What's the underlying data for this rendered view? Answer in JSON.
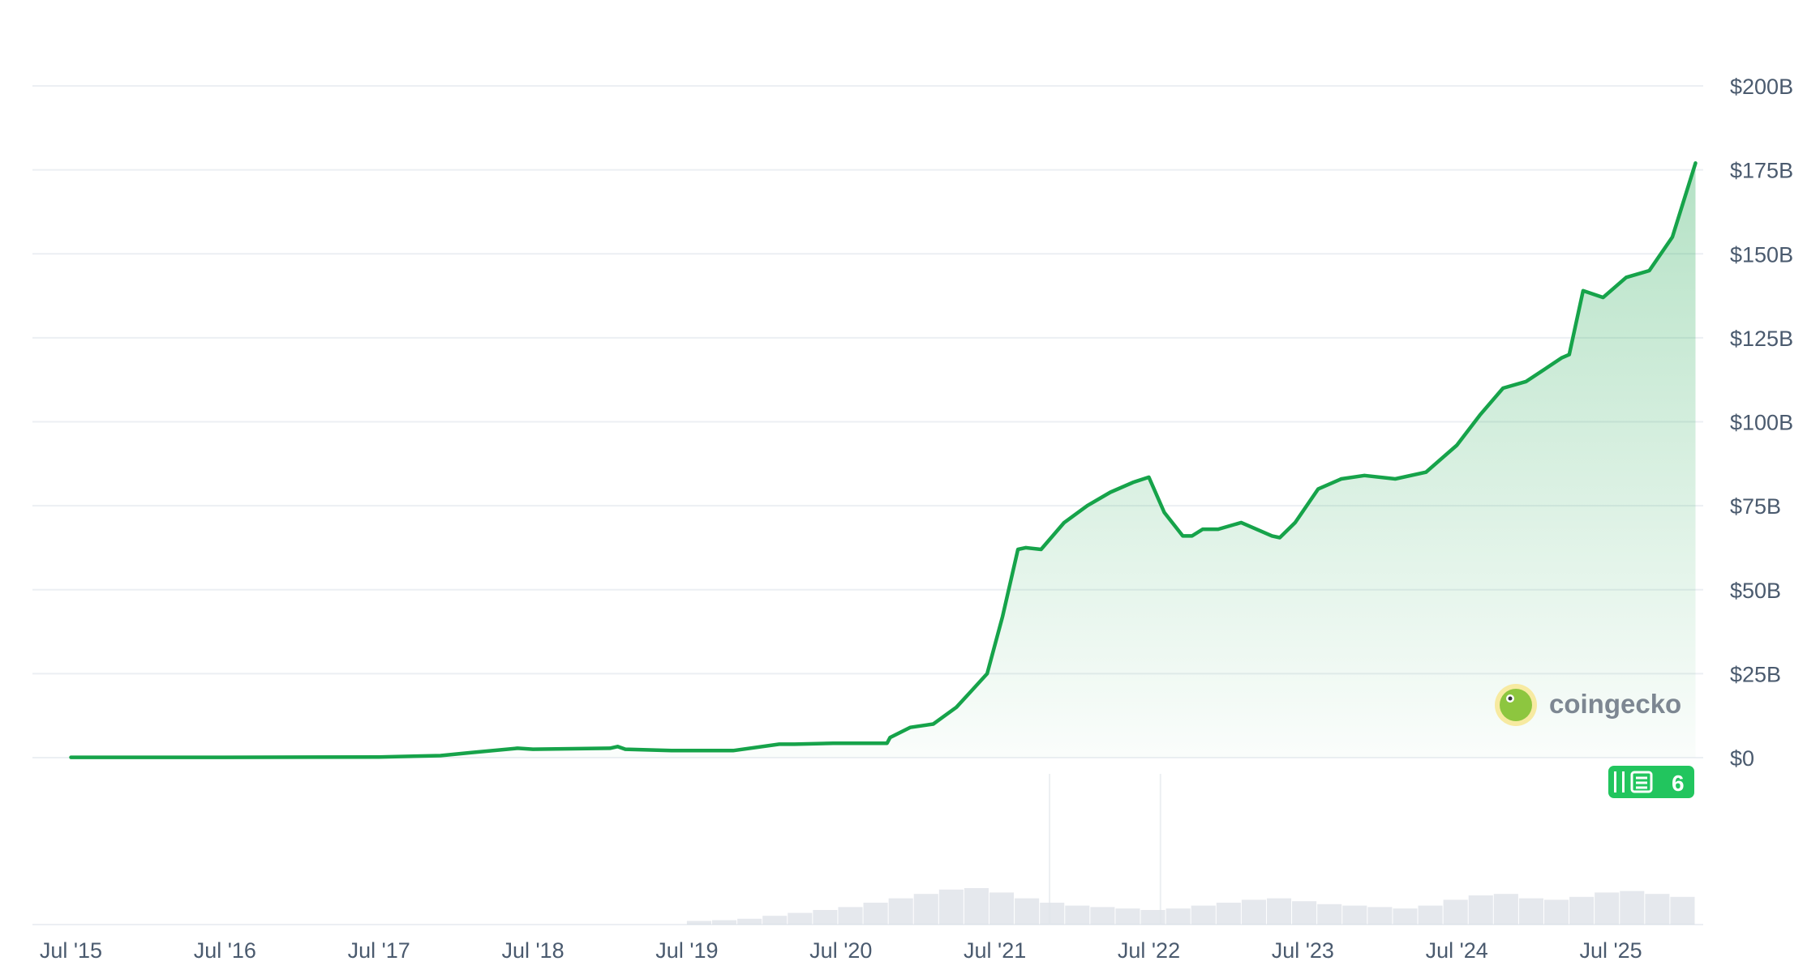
{
  "chart_data": {
    "type": "area",
    "title": "",
    "xlabel": "",
    "ylabel": "",
    "y_axis_position": "right",
    "ylim": [
      0,
      200
    ],
    "y_unit": "B USD",
    "y_ticks": [
      "$0",
      "$25B",
      "$50B",
      "$75B",
      "$100B",
      "$125B",
      "$150B",
      "$175B",
      "$200B"
    ],
    "x_ticks": [
      "Jul '15",
      "Jul '16",
      "Jul '17",
      "Jul '18",
      "Jul '19",
      "Jul '20",
      "Jul '21",
      "Jul '22",
      "Jul '23",
      "Jul '24",
      "Jul '25"
    ],
    "grid": true,
    "line_color": "#16a34a",
    "fill_color": "#16a34a",
    "series": [
      {
        "x": [
          2015.0,
          2016.0,
          2017.0,
          2017.4,
          2017.6,
          2017.9,
          2018.0,
          2018.5,
          2018.55,
          2018.6,
          2018.9,
          2019.0,
          2019.3,
          2019.6,
          2019.7,
          2019.95,
          2020.0,
          2020.3,
          2020.32,
          2020.45,
          2020.6,
          2020.75,
          2020.85,
          2020.95,
          2021.05,
          2021.15,
          2021.2,
          2021.3,
          2021.45,
          2021.6,
          2021.75,
          2021.9,
          2022.0,
          2022.1,
          2022.22,
          2022.28,
          2022.35,
          2022.45,
          2022.6,
          2022.8,
          2022.85,
          2022.95,
          2023.1,
          2023.25,
          2023.4,
          2023.6,
          2023.8,
          2024.0,
          2024.15,
          2024.3,
          2024.45,
          2024.55,
          2024.68,
          2024.73,
          2024.82,
          2024.95,
          2025.1,
          2025.25,
          2025.4,
          2025.55
        ],
        "values": [
          0.1,
          0.1,
          0.2,
          0.6,
          1.5,
          2.8,
          2.5,
          2.8,
          3.3,
          2.5,
          2.1,
          2.1,
          2.1,
          4.0,
          4.0,
          4.3,
          4.3,
          4.3,
          6.0,
          9.0,
          10.0,
          15.0,
          20.0,
          25.0,
          42.0,
          62.0,
          62.5,
          62.0,
          70.0,
          75.0,
          79.0,
          82.0,
          83.5,
          73.0,
          66.0,
          66.0,
          68.0,
          68.0,
          70.0,
          66.0,
          65.5,
          70.0,
          80.0,
          83.0,
          84.0,
          83.0,
          85.0,
          93.0,
          102.0,
          110.0,
          112.0,
          115.0,
          119.0,
          120.0,
          139.0,
          137.0,
          143.0,
          145.0,
          155.0,
          177.0
        ]
      }
    ],
    "volume": {
      "note_x": [
        2021.35,
        2022.07
      ],
      "bars": [
        0.5,
        0.6,
        0.8,
        1.2,
        1.6,
        2.0,
        2.4,
        3.0,
        3.6,
        4.2,
        4.8,
        5.0,
        4.4,
        3.6,
        3.0,
        2.6,
        2.4,
        2.2,
        2.0,
        2.2,
        2.6,
        3.0,
        3.4,
        3.6,
        3.2,
        2.8,
        2.6,
        2.4,
        2.2,
        2.6,
        3.4,
        4.0,
        4.2,
        3.6,
        3.4,
        3.8,
        4.4,
        4.6,
        4.2,
        3.8
      ]
    },
    "badge": {
      "count": "6"
    },
    "watermark": "coingecko"
  }
}
